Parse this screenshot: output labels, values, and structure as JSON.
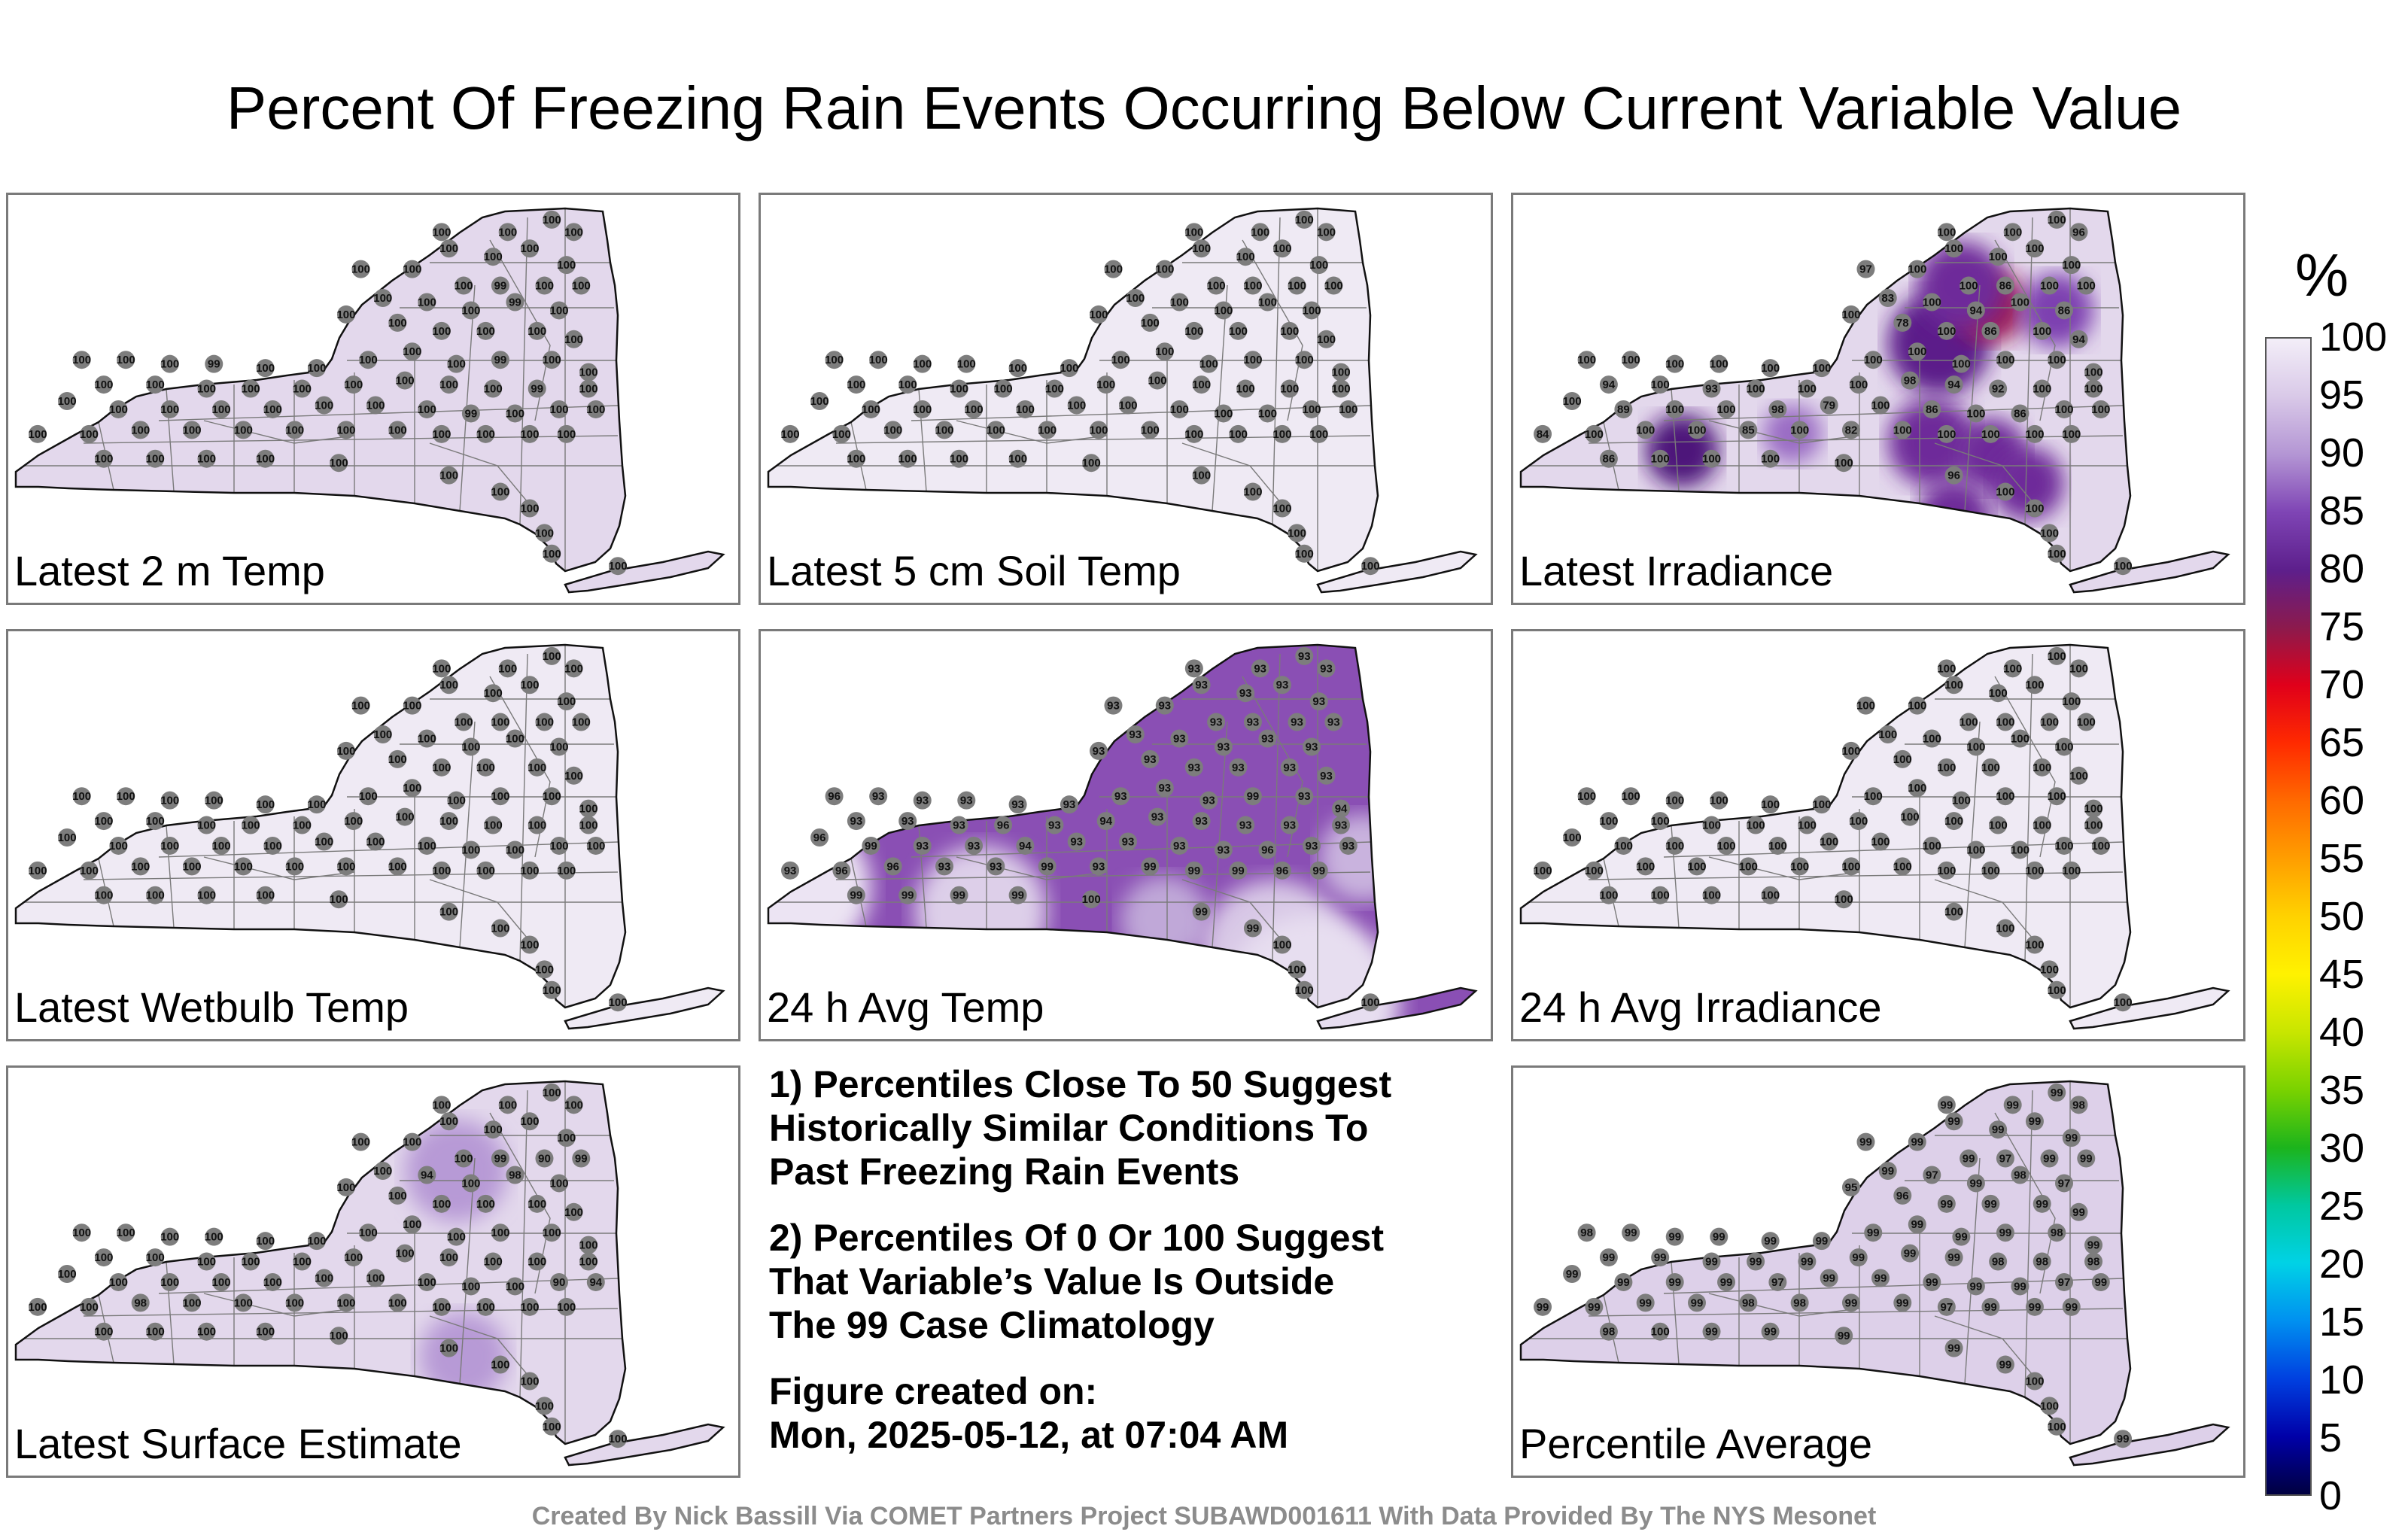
{
  "title": "Percent Of Freezing Rain Events Occurring Below Current Variable Value",
  "panels": [
    {
      "label": "Latest 2 m Temp",
      "fill": "#e3d8ec",
      "values": [
        "100",
        "100",
        "100",
        "100",
        "100",
        "100",
        "100",
        "100",
        "100",
        "100",
        "100",
        "99",
        "100",
        "100",
        "100",
        "100",
        "100",
        "99",
        "100",
        "100",
        "100",
        "100",
        "100",
        "100",
        "100",
        "100",
        "100",
        "100",
        "99",
        "100",
        "100",
        "100",
        "100",
        "100",
        "99",
        "100",
        "100",
        "100",
        "100",
        "100",
        "100",
        "100",
        "100",
        "100",
        "100",
        "100",
        "99",
        "100",
        "100",
        "100",
        "100",
        "100",
        "100",
        "100",
        "100",
        "100",
        "99",
        "100",
        "100",
        "100",
        "100",
        "100",
        "100",
        "100",
        "100",
        "100",
        "100",
        "100",
        "100",
        "100",
        "100",
        "100",
        "100",
        "100",
        "100",
        "100",
        "100",
        "100",
        "100",
        "100",
        "100",
        "100",
        "100"
      ]
    },
    {
      "label": "Latest 5 cm Soil Temp",
      "fill": "#efeaf4",
      "values": [
        "100",
        "100",
        "100",
        "100",
        "100",
        "100",
        "100",
        "100",
        "100",
        "100",
        "100",
        "100",
        "100",
        "100",
        "100",
        "100",
        "100",
        "100",
        "100",
        "100",
        "100",
        "100",
        "100",
        "100",
        "100",
        "100",
        "100",
        "100",
        "100",
        "100",
        "100",
        "100",
        "100",
        "100",
        "100",
        "100",
        "100",
        "100",
        "100",
        "100",
        "100",
        "100",
        "100",
        "100",
        "100",
        "100",
        "100",
        "100",
        "100",
        "100",
        "100",
        "100",
        "100",
        "100",
        "100",
        "100",
        "100",
        "100",
        "100",
        "100",
        "100",
        "100",
        "100",
        "100",
        "100",
        "100",
        "100",
        "100",
        "100",
        "100",
        "100",
        "100",
        "100",
        "100",
        "100",
        "100",
        "100",
        "100",
        "100",
        "100",
        "100",
        "100",
        "100"
      ]
    },
    {
      "label": "Latest Irradiance",
      "fill": "#e3d8ec",
      "values": [
        "100",
        "100",
        "100",
        "96",
        "100",
        "100",
        "100",
        "100",
        "97",
        "100",
        "100",
        "86",
        "100",
        "100",
        "83",
        "100",
        "94",
        "100",
        "86",
        "100",
        "78",
        "100",
        "86",
        "100",
        "94",
        "100",
        "100",
        "100",
        "100",
        "100",
        "100",
        "100",
        "100",
        "100",
        "100",
        "100",
        "100",
        "94",
        "100",
        "93",
        "100",
        "100",
        "100",
        "98",
        "94",
        "92",
        "100",
        "100",
        "100",
        "89",
        "100",
        "100",
        "98",
        "79",
        "100",
        "86",
        "100",
        "86",
        "100",
        "100",
        "84",
        "100",
        "100",
        "100",
        "85",
        "100",
        "82",
        "100",
        "100",
        "100",
        "100",
        "100",
        "86",
        "100",
        "100",
        "100",
        "100",
        "96",
        "100",
        "100",
        "100",
        "100",
        "100"
      ],
      "blobs": [
        [
          "0.58",
          "0.36",
          "0.07",
          "#5c1d8a"
        ],
        [
          "0.65",
          "0.27",
          "0.05",
          "#9b1b5a"
        ],
        [
          "0.61",
          "0.22",
          "0.06",
          "#6e2a9a"
        ],
        [
          "0.74",
          "0.28",
          "0.05",
          "#7d3fb0"
        ],
        [
          "0.57",
          "0.60",
          "0.06",
          "#6e2a9a"
        ],
        [
          "0.65",
          "0.63",
          "0.05",
          "#6e2a9a"
        ],
        [
          "0.70",
          "0.70",
          "0.05",
          "#6e2a9a"
        ],
        [
          "0.60",
          "0.78",
          "0.05",
          "#6e2a9a"
        ],
        [
          "0.23",
          "0.62",
          "0.05",
          "#4e157a"
        ],
        [
          "0.38",
          "0.58",
          "0.04",
          "#9a6cc4"
        ]
      ]
    },
    {
      "label": "Latest Wetbulb Temp",
      "fill": "#efeaf4",
      "values": [
        "100",
        "100",
        "100",
        "100",
        "100",
        "100",
        "100",
        "100",
        "100",
        "100",
        "100",
        "100",
        "100",
        "100",
        "100",
        "100",
        "100",
        "100",
        "100",
        "100",
        "100",
        "100",
        "100",
        "100",
        "100",
        "100",
        "100",
        "100",
        "100",
        "100",
        "100",
        "100",
        "100",
        "100",
        "100",
        "100",
        "100",
        "100",
        "100",
        "100",
        "100",
        "100",
        "100",
        "100",
        "100",
        "100",
        "100",
        "100",
        "100",
        "100",
        "100",
        "100",
        "100",
        "100",
        "100",
        "100",
        "100",
        "100",
        "100",
        "100",
        "100",
        "100",
        "100",
        "100",
        "100",
        "100",
        "100",
        "100",
        "100",
        "100",
        "100",
        "100",
        "100",
        "100",
        "100",
        "100",
        "100",
        "100",
        "100",
        "100",
        "100",
        "100",
        "100"
      ]
    },
    {
      "label": "24 h Avg Temp",
      "fill": "#8a4fb4",
      "values": [
        "93",
        "93",
        "93",
        "93",
        "93",
        "93",
        "93",
        "93",
        "93",
        "93",
        "93",
        "93",
        "93",
        "93",
        "93",
        "93",
        "93",
        "93",
        "93",
        "93",
        "93",
        "93",
        "93",
        "93",
        "93",
        "96",
        "93",
        "93",
        "93",
        "93",
        "93",
        "93",
        "93",
        "93",
        "99",
        "93",
        "94",
        "93",
        "93",
        "93",
        "96",
        "93",
        "94",
        "93",
        "93",
        "93",
        "93",
        "93",
        "96",
        "99",
        "93",
        "93",
        "94",
        "93",
        "93",
        "93",
        "93",
        "96",
        "93",
        "93",
        "93",
        "96",
        "96",
        "93",
        "93",
        "99",
        "93",
        "99",
        "99",
        "99",
        "96",
        "99",
        "99",
        "99",
        "99",
        "99",
        "100",
        "99",
        "99",
        "100",
        "100",
        "100",
        "100"
      ],
      "blobs": [
        [
          "0.05",
          "0.62",
          "0.10",
          "#ece4f3"
        ],
        [
          "0.30",
          "0.68",
          "0.09",
          "#ddcfe9"
        ],
        [
          "0.55",
          "0.70",
          "0.06",
          "#c0a8d8"
        ],
        [
          "0.70",
          "0.78",
          "0.10",
          "#d8c8e6"
        ],
        [
          "0.82",
          "0.55",
          "0.06",
          "#c9b3de"
        ],
        [
          "0.75",
          "0.90",
          "0.12",
          "#e7def0"
        ]
      ]
    },
    {
      "label": "24 h Avg Irradiance",
      "fill": "#efeaf4",
      "values": [
        "100",
        "100",
        "100",
        "100",
        "100",
        "100",
        "100",
        "100",
        "100",
        "100",
        "100",
        "100",
        "100",
        "100",
        "100",
        "100",
        "100",
        "100",
        "100",
        "100",
        "100",
        "100",
        "100",
        "100",
        "100",
        "100",
        "100",
        "100",
        "100",
        "100",
        "100",
        "100",
        "100",
        "100",
        "100",
        "100",
        "100",
        "100",
        "100",
        "100",
        "100",
        "100",
        "100",
        "100",
        "100",
        "100",
        "100",
        "100",
        "100",
        "100",
        "100",
        "100",
        "100",
        "100",
        "100",
        "100",
        "100",
        "100",
        "100",
        "100",
        "100",
        "100",
        "100",
        "100",
        "100",
        "100",
        "100",
        "100",
        "100",
        "100",
        "100",
        "100",
        "100",
        "100",
        "100",
        "100",
        "100",
        "100",
        "100",
        "100",
        "100",
        "100",
        "100"
      ]
    },
    {
      "label": "Latest Surface Estimate",
      "fill": "#e3d8ec",
      "values": [
        "100",
        "100",
        "100",
        "100",
        "100",
        "100",
        "100",
        "100",
        "100",
        "100",
        "100",
        "99",
        "90",
        "99",
        "100",
        "94",
        "100",
        "98",
        "100",
        "100",
        "100",
        "100",
        "100",
        "100",
        "100",
        "100",
        "100",
        "100",
        "100",
        "100",
        "100",
        "100",
        "100",
        "100",
        "100",
        "100",
        "100",
        "100",
        "100",
        "100",
        "100",
        "100",
        "100",
        "100",
        "100",
        "100",
        "100",
        "100",
        "100",
        "100",
        "100",
        "100",
        "100",
        "100",
        "100",
        "100",
        "100",
        "100",
        "90",
        "94",
        "100",
        "100",
        "98",
        "100",
        "100",
        "100",
        "100",
        "100",
        "100",
        "100",
        "100",
        "100",
        "100",
        "100",
        "100",
        "100",
        "100",
        "100",
        "100",
        "100",
        "100",
        "100",
        "100"
      ],
      "blobs": [
        [
          "0.61",
          "0.25",
          "0.07",
          "#b79ad6"
        ],
        [
          "0.62",
          "0.70",
          "0.06",
          "#b79ad6"
        ]
      ]
    },
    {
      "label": "Percentile Average",
      "fill": "#ddd0e9",
      "values": [
        "99",
        "99",
        "99",
        "98",
        "99",
        "99",
        "99",
        "99",
        "99",
        "99",
        "99",
        "97",
        "99",
        "99",
        "99",
        "97",
        "99",
        "98",
        "97",
        "95",
        "96",
        "99",
        "99",
        "99",
        "99",
        "98",
        "99",
        "99",
        "99",
        "99",
        "99",
        "99",
        "99",
        "99",
        "99",
        "98",
        "99",
        "99",
        "99",
        "99",
        "99",
        "99",
        "99",
        "99",
        "99",
        "98",
        "98",
        "98",
        "99",
        "99",
        "99",
        "99",
        "97",
        "99",
        "99",
        "99",
        "99",
        "99",
        "97",
        "99",
        "99",
        "99",
        "99",
        "99",
        "98",
        "98",
        "99",
        "99",
        "97",
        "99",
        "99",
        "99",
        "98",
        "100",
        "99",
        "99",
        "99",
        "99",
        "99",
        "100",
        "100",
        "100",
        "99"
      ]
    }
  ],
  "notes": [
    "1) Percentiles Close To 50 Suggest\nHistorically Similar Conditions To\nPast Freezing Rain Events",
    "2) Percentiles Of 0 Or 100 Suggest\nThat Variable’s Value Is Outside\nThe 99 Case Climatology",
    "Figure created on:\nMon, 2025-05-12, at 07:04 AM"
  ],
  "colorbar": {
    "unit": "%",
    "ticks": [
      "100",
      "95",
      "90",
      "85",
      "80",
      "75",
      "70",
      "65",
      "60",
      "55",
      "50",
      "45",
      "40",
      "35",
      "30",
      "25",
      "20",
      "15",
      "10",
      "5",
      "0"
    ],
    "colors": [
      "#f3eef8",
      "#d9c9e8",
      "#b496d4",
      "#7f45b5",
      "#5d1f8c",
      "#8c1a4d",
      "#e0001a",
      "#ff2a00",
      "#ff6a00",
      "#ff9e00",
      "#ffd200",
      "#fff200",
      "#c8e600",
      "#7ad200",
      "#1cb41c",
      "#00c8a0",
      "#00d2e6",
      "#0090f0",
      "#0040e0",
      "#0000a8",
      "#000040"
    ]
  },
  "credit": "Created By Nick Bassill Via COMET Partners Project SUBAWD001611 With Data Provided By The NYS Mesonet"
}
